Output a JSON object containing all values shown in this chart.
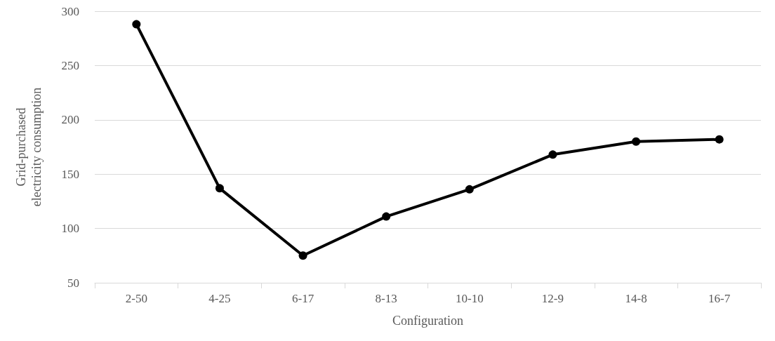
{
  "chart_data": {
    "type": "line",
    "xlabel": "Configuration",
    "ylabel": "Grid-purchased electricity consumption",
    "categories": [
      "2-50",
      "4-25",
      "6-17",
      "8-13",
      "10-10",
      "12-9",
      "14-8",
      "16-7"
    ],
    "series": [
      {
        "color": "#000000",
        "values": [
          288,
          137,
          75,
          111,
          136,
          168,
          180,
          182
        ]
      }
    ],
    "ylim": [
      50,
      300
    ],
    "yticks": [
      50,
      100,
      150,
      200,
      250,
      300
    ],
    "grid": "y",
    "marker": "circle",
    "line_style": "solid"
  }
}
